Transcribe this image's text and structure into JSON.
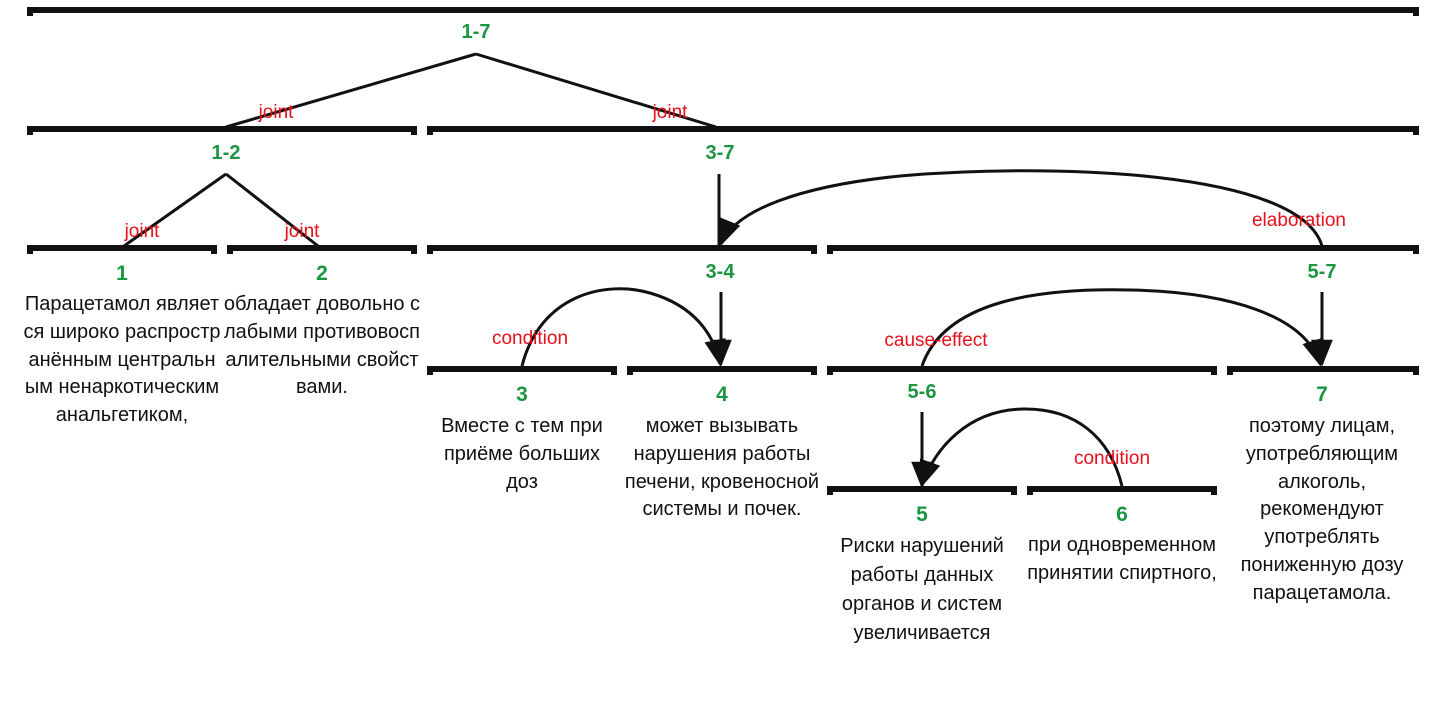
{
  "colors": {
    "bar": "#111111",
    "span_label": "#1a9641",
    "relation": "#e8101a",
    "text": "#111111"
  },
  "spans": {
    "s17": "1-7",
    "s12": "1-2",
    "s37": "3-7",
    "s34": "3-4",
    "s57": "5-7",
    "s56": "5-6"
  },
  "relations": {
    "joint_1": "joint",
    "joint_2": "joint",
    "joint_3": "joint",
    "joint_4": "joint",
    "elaboration": "elaboration",
    "condition_1": "condition",
    "cause_effect": "cause-effect",
    "condition_2": "condition"
  },
  "edus": [
    {
      "num": "1",
      "text": "Парацетамол является широко распространённым центральным ненаркотическим анальгетиком,"
    },
    {
      "num": "2",
      "text": "обладает довольно слабыми противовоспалительными свойствами."
    },
    {
      "num": "3",
      "text": "Вместе с тем при приёме больших доз"
    },
    {
      "num": "4",
      "text": "может вызывать нарушения работы печени, кровеносной системы и почек."
    },
    {
      "num": "5",
      "text": "Риски нарушений работы данных органов и систем увеличивается"
    },
    {
      "num": "6",
      "text": "при одновременном принятии спиртного,"
    },
    {
      "num": "7",
      "text": "поэтому лицам, употребляющим алкоголь, рекомендуют употреблять пониженную дозу парацетамола."
    }
  ]
}
